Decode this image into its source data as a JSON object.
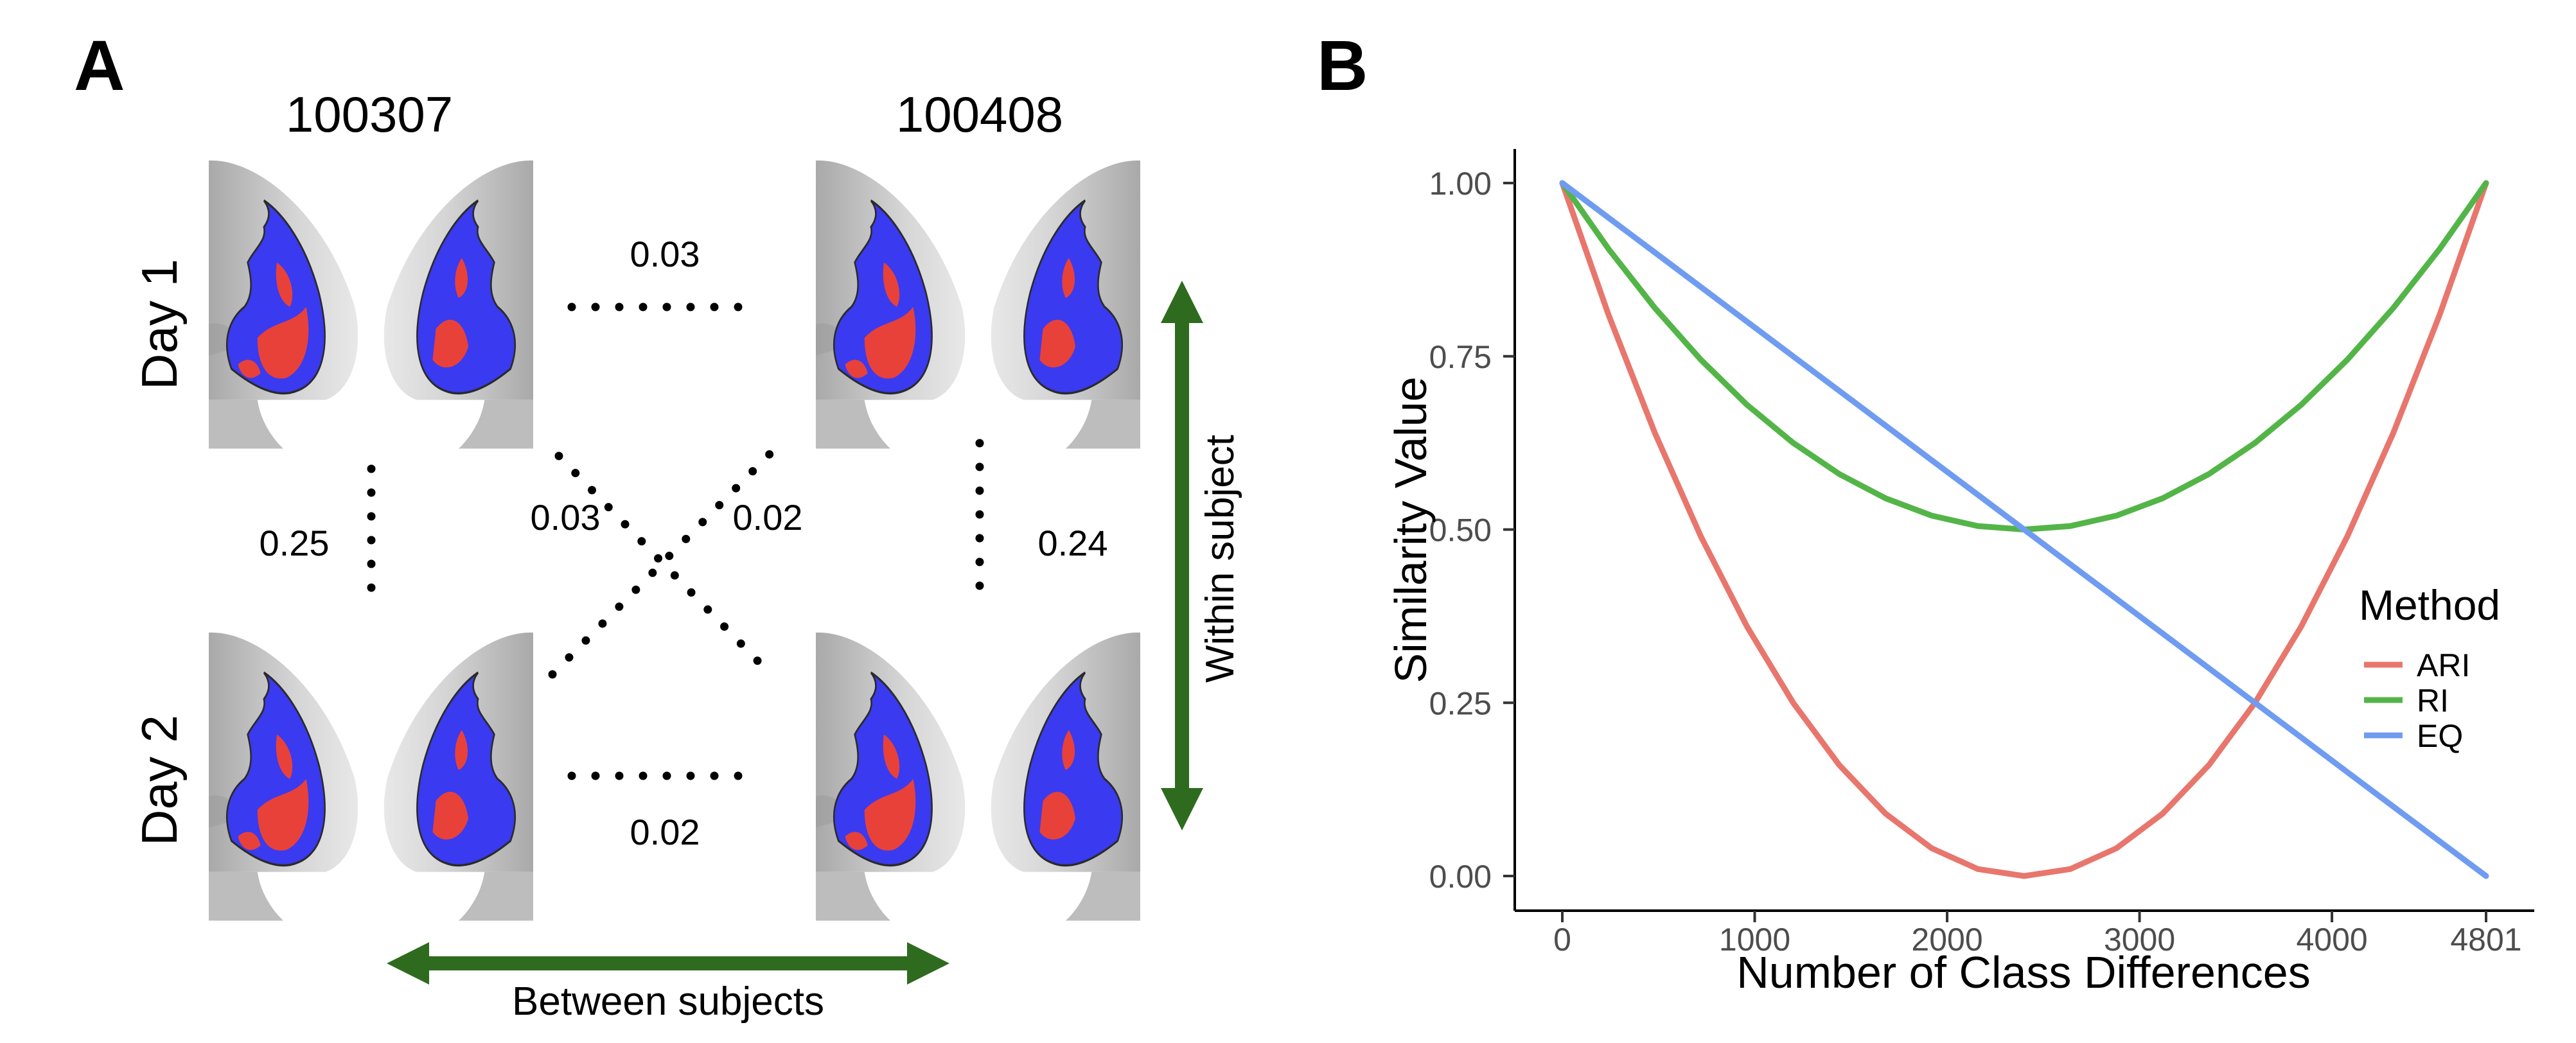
{
  "panel_a": {
    "letter": "A",
    "subjects": [
      "100307",
      "100408"
    ],
    "days": [
      "Day 1",
      "Day 2"
    ],
    "similarities": {
      "top": "0.03",
      "bottom": "0.02",
      "left": "0.25",
      "right": "0.24",
      "cross_down": "0.03",
      "cross_up": "0.02"
    },
    "between_label": "Between subjects",
    "within_label": "Within subject",
    "colors": {
      "arrow": "#2e6b1f",
      "parcel_red": "#e8413a",
      "parcel_blue": "#3a3af0",
      "brain_gray": "#c8c8c8",
      "brain_dark": "#5a5a5a"
    }
  },
  "panel_b": {
    "letter": "B"
  },
  "chart_data": {
    "type": "line",
    "title": "",
    "xlabel": "Number of Class Differences",
    "ylabel": "Similarity Value",
    "xlim": [
      0,
      4801
    ],
    "ylim": [
      0,
      1
    ],
    "x_ticks": [
      0,
      1000,
      2000,
      3000,
      4000,
      4801
    ],
    "x_tick_labels": [
      "0",
      "1000",
      "2000",
      "3000",
      "4000",
      "4801"
    ],
    "y_ticks": [
      0,
      0.25,
      0.5,
      0.75,
      1
    ],
    "y_tick_labels": [
      "0.00",
      "0.25",
      "0.50",
      "0.75",
      "1.00"
    ],
    "grid": false,
    "legend": {
      "title": "Method",
      "position": "right"
    },
    "x": [
      0,
      240,
      480,
      720,
      960,
      1200,
      1440,
      1680,
      1920,
      2160,
      2400,
      2640,
      2880,
      3120,
      3360,
      3600,
      3840,
      4080,
      4320,
      4560,
      4801
    ],
    "series": [
      {
        "name": "ARI",
        "color": "#e8766d",
        "values": [
          1.0,
          0.81,
          0.64,
          0.49,
          0.36,
          0.25,
          0.16,
          0.09,
          0.04,
          0.01,
          0.0,
          0.01,
          0.04,
          0.09,
          0.16,
          0.25,
          0.36,
          0.49,
          0.64,
          0.81,
          1.0
        ]
      },
      {
        "name": "RI",
        "color": "#53b548",
        "values": [
          1.0,
          0.905,
          0.82,
          0.745,
          0.68,
          0.625,
          0.58,
          0.545,
          0.52,
          0.505,
          0.5,
          0.505,
          0.52,
          0.545,
          0.58,
          0.625,
          0.68,
          0.745,
          0.82,
          0.905,
          1.0
        ]
      },
      {
        "name": "EQ",
        "color": "#6f9cf0",
        "values": [
          1.0,
          0.95,
          0.9,
          0.85,
          0.8,
          0.75,
          0.7,
          0.65,
          0.6,
          0.55,
          0.5,
          0.45,
          0.4,
          0.35,
          0.3,
          0.25,
          0.2,
          0.15,
          0.1,
          0.05,
          0.0
        ]
      }
    ]
  }
}
